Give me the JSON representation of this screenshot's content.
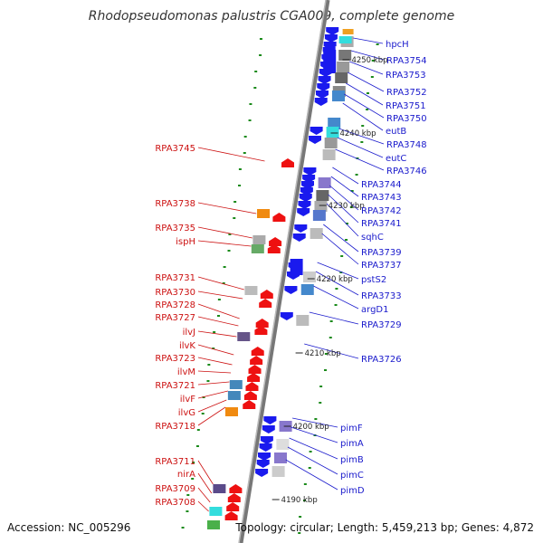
{
  "title": "Rhodopseudomonas palustris CGA009, complete genome",
  "accession": "Accession: NC_005296",
  "summary": "Topology: circular; Length: 5,459,213 bp; Genes: 4,872",
  "colors": {
    "forward": "#ee1111",
    "reverse": "#1a1aee",
    "left_label": "#cc1111",
    "right_label": "#1a1acc"
  },
  "scale_labels": [
    "4250 kbp",
    "4240 kbp",
    "4230 kbp",
    "4220 kbp",
    "4210 kbp",
    "4200 kbp",
    "4190 kbp"
  ],
  "left_genes": [
    "RPA3745",
    "RPA3738",
    "RPA3735",
    "ispH",
    "RPA3731",
    "RPA3730",
    "RPA3728",
    "RPA3727",
    "ilvJ",
    "ilvK",
    "RPA3723",
    "ilvM",
    "RPA3721",
    "ilvF",
    "ilvG",
    "RPA3718",
    "RPA3711",
    "nirA",
    "RPA3709",
    "RPA3708"
  ],
  "right_genes": [
    "hpcH",
    "RPA3754",
    "RPA3753",
    "RPA3752",
    "RPA3751",
    "RPA3750",
    "eutB",
    "RPA3748",
    "eutC",
    "RPA3746",
    "RPA3744",
    "RPA3743",
    "RPA3742",
    "RPA3741",
    "sqhC",
    "RPA3739",
    "RPA3737",
    "pstS2",
    "RPA3733",
    "argD1",
    "RPA3729",
    "RPA3726",
    "pimF",
    "pimA",
    "pimB",
    "pimC",
    "pimD"
  ]
}
